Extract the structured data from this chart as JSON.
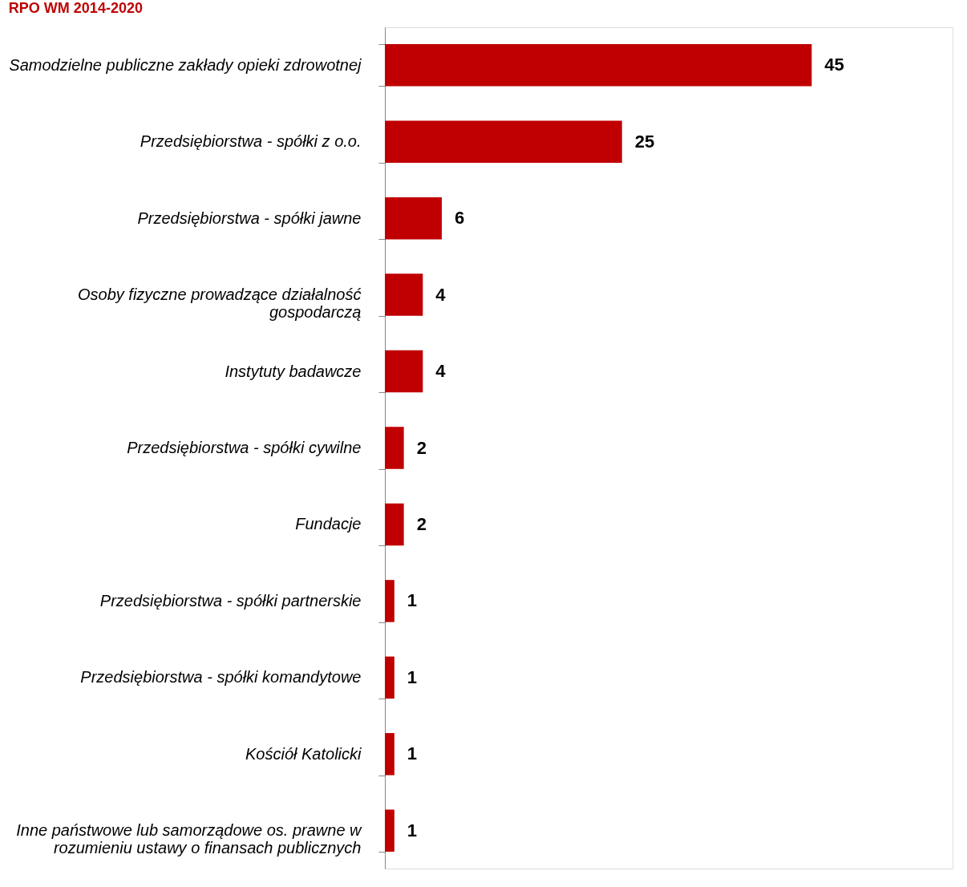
{
  "chart_data": {
    "type": "bar",
    "orientation": "horizontal",
    "title": "RPO WM 2014-2020",
    "data_labels": true,
    "color": "#c00000",
    "tick_labels": "y",
    "categories": [
      "Samodzielne publiczne zakłady opieki zdrowotnej",
      "Przedsiębiorstwa - spółki z o.o.",
      "Przedsiębiorstwa - spółki jawne",
      "Osoby fizyczne prowadzące działalność gospodarczą",
      "Instytuty badawcze",
      "Przedsiębiorstwa - spółki cywilne",
      "Fundacje",
      "Przedsiębiorstwa - spółki partnerskie",
      "Przedsiębiorstwa - spółki komandytowe",
      "Kościół Katolicki",
      "Inne państwowe lub samorządowe os. prawne w rozumieniu ustawy o finansach publicznych"
    ],
    "values": [
      45,
      25,
      6,
      4,
      4,
      2,
      2,
      1,
      1,
      1,
      1
    ]
  }
}
